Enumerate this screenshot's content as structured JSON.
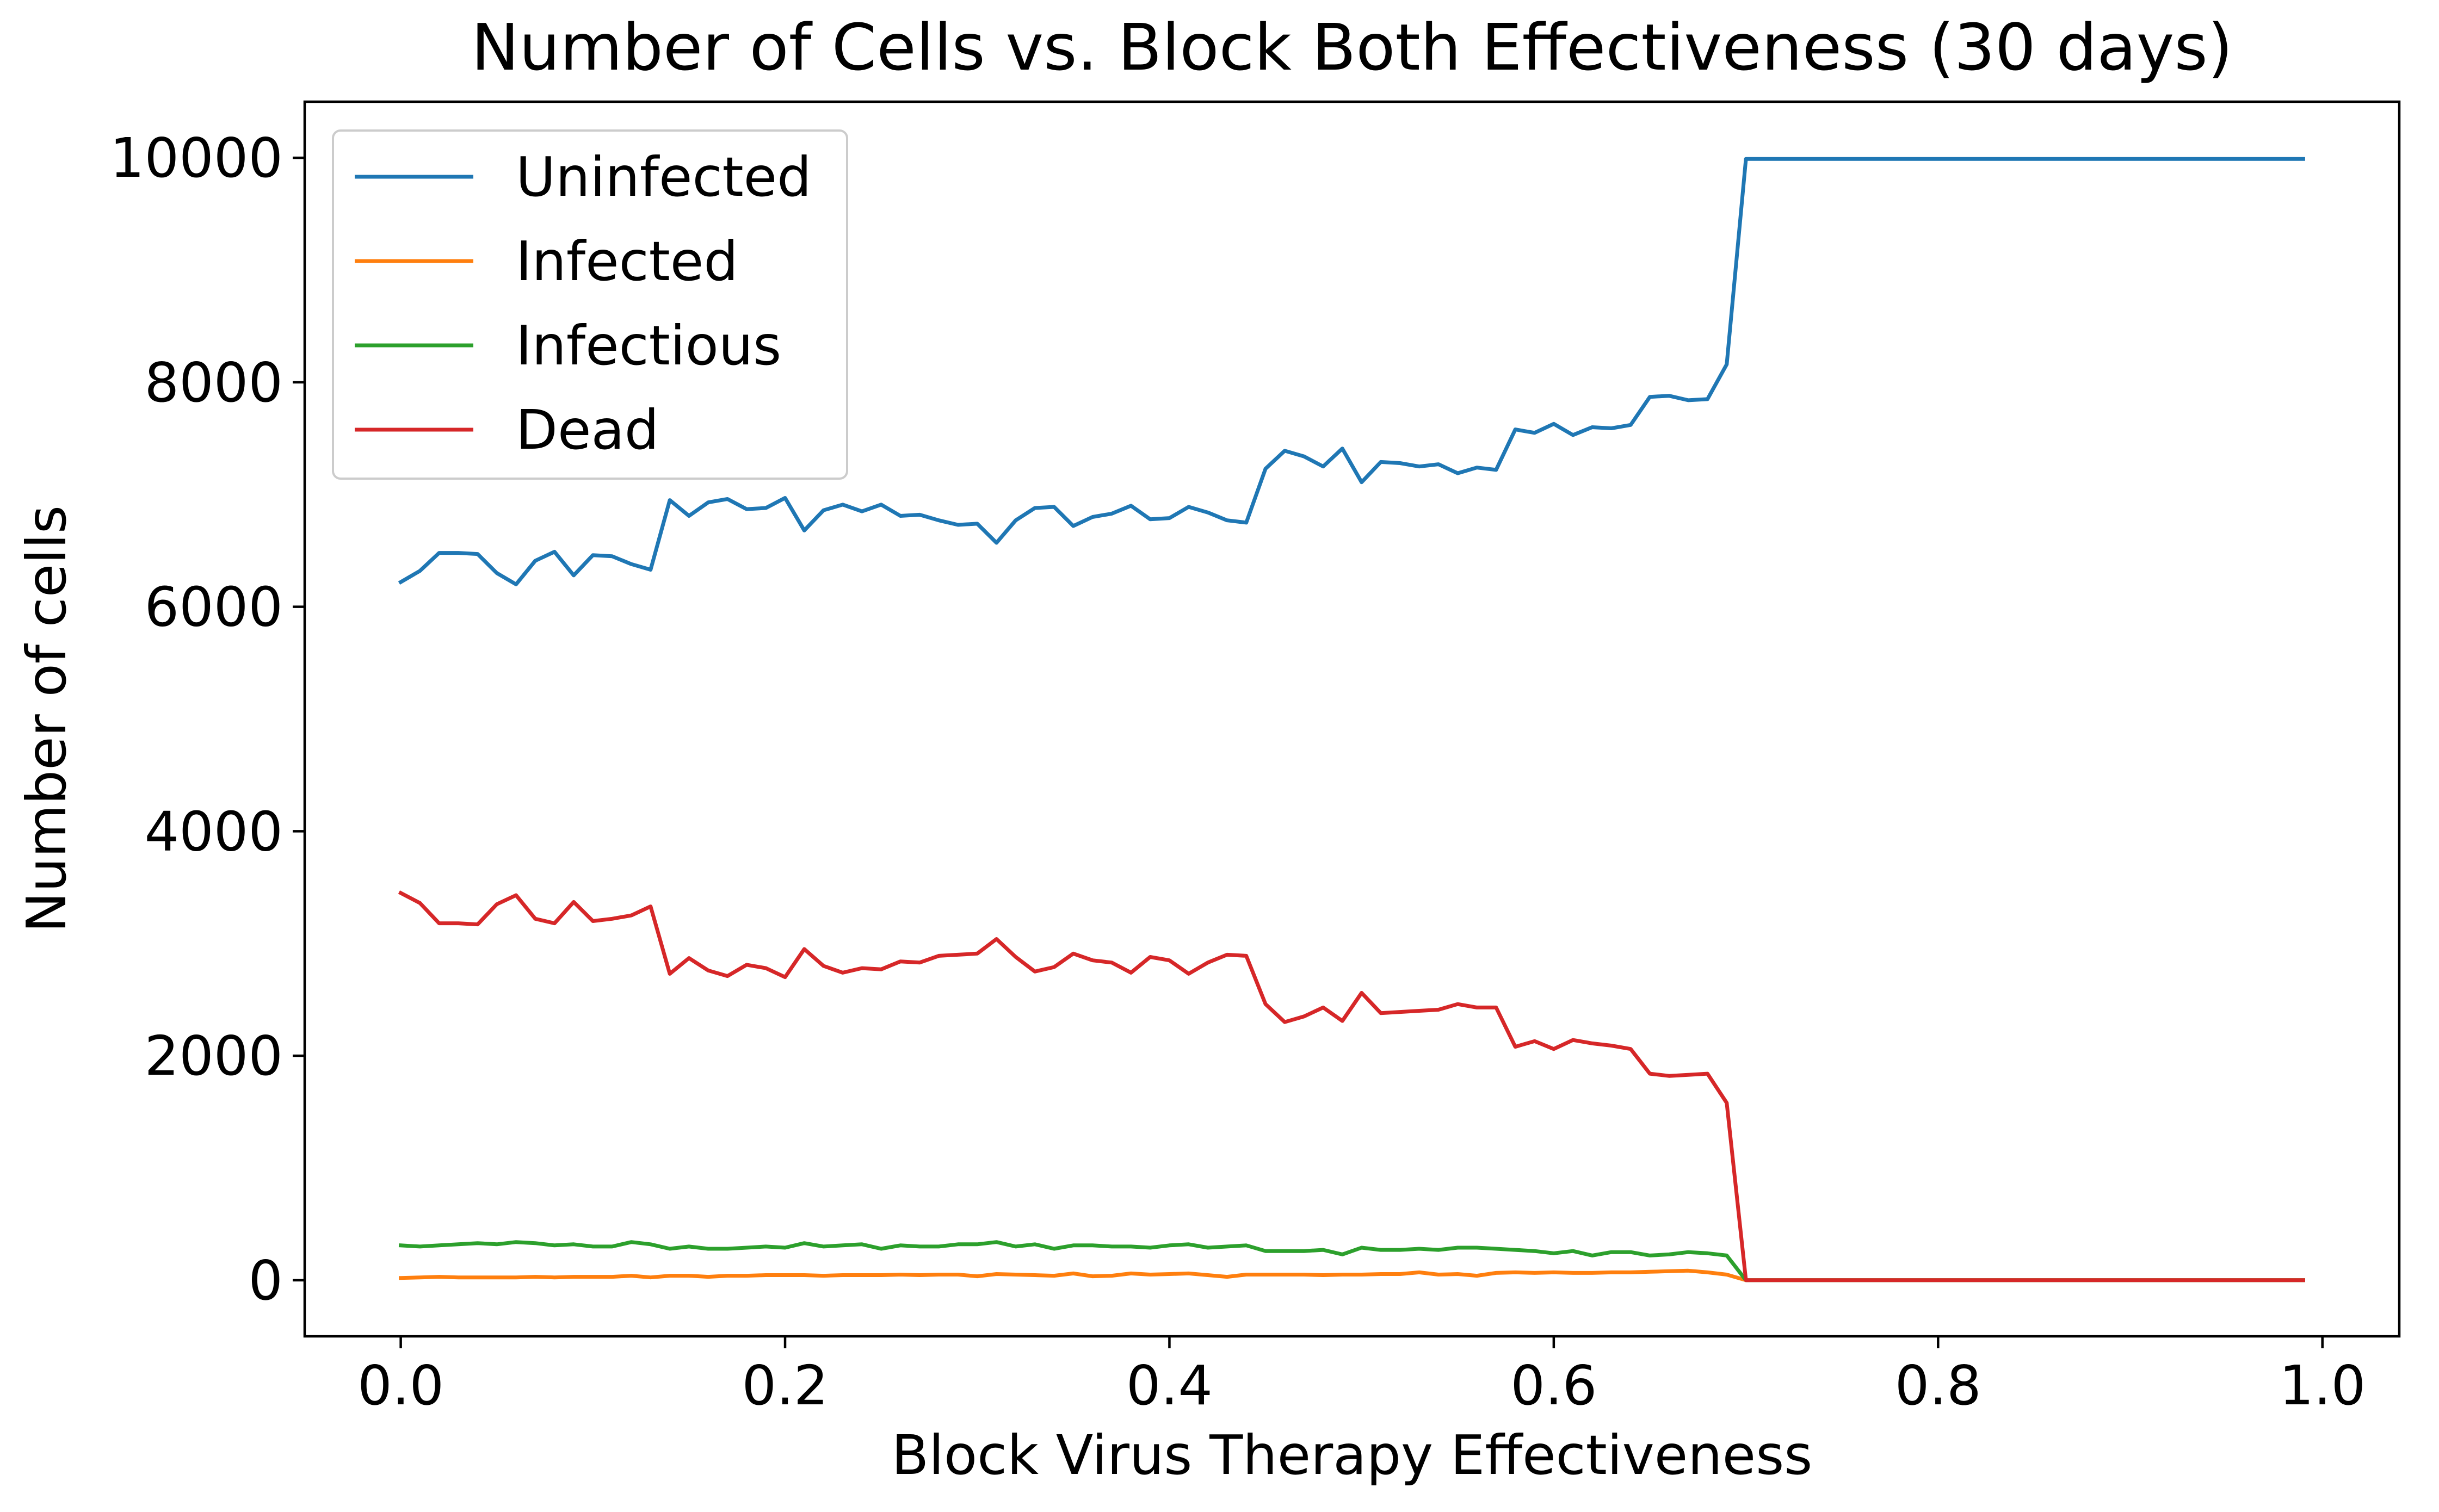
{
  "chart_data": {
    "type": "line",
    "title": "Number of Cells vs. Block Both Effectiveness (30 days)",
    "xlabel": "Block Virus Therapy Effectiveness",
    "ylabel": "Number of cells",
    "xlim": [
      -0.05,
      1.04
    ],
    "ylim": [
      -500,
      10500
    ],
    "xticks": [
      0.0,
      0.2,
      0.4,
      0.6,
      0.8,
      1.0
    ],
    "xtick_labels": [
      "0.0",
      "0.2",
      "0.4",
      "0.6",
      "0.8",
      "1.0"
    ],
    "yticks": [
      0,
      2000,
      4000,
      6000,
      8000,
      10000
    ],
    "ytick_labels": [
      "0",
      "2000",
      "4000",
      "6000",
      "8000",
      "10000"
    ],
    "legend_position": "upper-left",
    "grid": false,
    "x": [
      0.0,
      0.01,
      0.02,
      0.03,
      0.04,
      0.05,
      0.06,
      0.07,
      0.08,
      0.09,
      0.1,
      0.11,
      0.12,
      0.13,
      0.14,
      0.15,
      0.16,
      0.17,
      0.18,
      0.19,
      0.2,
      0.21,
      0.22,
      0.23,
      0.24,
      0.25,
      0.26,
      0.27,
      0.28,
      0.29,
      0.3,
      0.31,
      0.32,
      0.33,
      0.34,
      0.35,
      0.36,
      0.37,
      0.38,
      0.39,
      0.4,
      0.41,
      0.42,
      0.43,
      0.44,
      0.45,
      0.46,
      0.47,
      0.48,
      0.49,
      0.5,
      0.51,
      0.52,
      0.53,
      0.54,
      0.55,
      0.56,
      0.57,
      0.58,
      0.59,
      0.6,
      0.61,
      0.62,
      0.63,
      0.64,
      0.65,
      0.66,
      0.67,
      0.68,
      0.69,
      0.7,
      0.71,
      0.72,
      0.73,
      0.74,
      0.75,
      0.76,
      0.77,
      0.78,
      0.79,
      0.8,
      0.81,
      0.82,
      0.83,
      0.84,
      0.85,
      0.86,
      0.87,
      0.88,
      0.89,
      0.9,
      0.91,
      0.92,
      0.93,
      0.94,
      0.95,
      0.96,
      0.97,
      0.98,
      0.99
    ],
    "series": [
      {
        "name": "Uninfected",
        "color": "#1f77b4",
        "values": [
          6220,
          6320,
          6480,
          6480,
          6470,
          6300,
          6200,
          6410,
          6490,
          6280,
          6460,
          6450,
          6380,
          6330,
          6950,
          6810,
          6930,
          6960,
          6870,
          6880,
          6970,
          6680,
          6860,
          6910,
          6850,
          6910,
          6810,
          6820,
          6770,
          6730,
          6740,
          6570,
          6770,
          6880,
          6890,
          6720,
          6800,
          6830,
          6900,
          6780,
          6790,
          6890,
          6840,
          6770,
          6750,
          7230,
          7390,
          7340,
          7250,
          7410,
          7110,
          7290,
          7280,
          7250,
          7270,
          7190,
          7240,
          7220,
          7580,
          7550,
          7630,
          7530,
          7600,
          7590,
          7620,
          7870,
          7880,
          7840,
          7850,
          8160,
          9990,
          9990,
          9990,
          9990,
          9990,
          9990,
          9990,
          9990,
          9990,
          9990,
          9990,
          9990,
          9990,
          9990,
          9990,
          9990,
          9990,
          9990,
          9990,
          9990,
          9990,
          9990,
          9990,
          9990,
          9990,
          9990,
          9990,
          9990,
          9990,
          9990
        ]
      },
      {
        "name": "Infected",
        "color": "#ff7f0e",
        "values": [
          20,
          25,
          30,
          25,
          25,
          25,
          25,
          30,
          25,
          30,
          30,
          30,
          40,
          25,
          40,
          40,
          30,
          40,
          40,
          45,
          45,
          45,
          40,
          45,
          45,
          45,
          50,
          45,
          50,
          50,
          35,
          55,
          50,
          45,
          40,
          60,
          35,
          40,
          60,
          50,
          55,
          60,
          45,
          30,
          50,
          50,
          50,
          50,
          45,
          50,
          50,
          55,
          55,
          70,
          50,
          55,
          40,
          65,
          70,
          65,
          70,
          65,
          65,
          70,
          70,
          75,
          80,
          85,
          70,
          50,
          0,
          0,
          0,
          0,
          0,
          0,
          0,
          0,
          0,
          0,
          0,
          0,
          0,
          0,
          0,
          0,
          0,
          0,
          0,
          0,
          0,
          0,
          0,
          0,
          0,
          0,
          0,
          0,
          0,
          0
        ]
      },
      {
        "name": "Infectious",
        "color": "#2ca02c",
        "values": [
          310,
          300,
          310,
          320,
          330,
          320,
          340,
          330,
          310,
          320,
          300,
          300,
          340,
          320,
          280,
          300,
          280,
          280,
          290,
          300,
          290,
          330,
          300,
          310,
          320,
          280,
          310,
          300,
          300,
          320,
          320,
          340,
          300,
          320,
          280,
          310,
          310,
          300,
          300,
          290,
          310,
          320,
          290,
          300,
          310,
          260,
          260,
          260,
          270,
          230,
          290,
          270,
          270,
          280,
          270,
          290,
          290,
          280,
          270,
          260,
          240,
          260,
          220,
          250,
          250,
          220,
          230,
          250,
          240,
          220,
          0,
          0,
          0,
          0,
          0,
          0,
          0,
          0,
          0,
          0,
          0,
          0,
          0,
          0,
          0,
          0,
          0,
          0,
          0,
          0,
          0,
          0,
          0,
          0,
          0,
          0,
          0,
          0,
          0,
          0
        ]
      },
      {
        "name": "Dead",
        "color": "#d62728",
        "values": [
          3450,
          3360,
          3180,
          3180,
          3170,
          3350,
          3430,
          3220,
          3180,
          3370,
          3200,
          3220,
          3250,
          3330,
          2730,
          2870,
          2760,
          2710,
          2810,
          2780,
          2700,
          2950,
          2800,
          2740,
          2780,
          2770,
          2840,
          2830,
          2890,
          2900,
          2910,
          3040,
          2880,
          2750,
          2790,
          2910,
          2850,
          2830,
          2740,
          2880,
          2850,
          2730,
          2830,
          2900,
          2890,
          2460,
          2300,
          2350,
          2430,
          2310,
          2560,
          2380,
          2390,
          2400,
          2410,
          2460,
          2430,
          2430,
          2080,
          2130,
          2060,
          2140,
          2110,
          2090,
          2060,
          1840,
          1820,
          1830,
          1840,
          1580,
          0,
          0,
          0,
          0,
          0,
          0,
          0,
          0,
          0,
          0,
          0,
          0,
          0,
          0,
          0,
          0,
          0,
          0,
          0,
          0,
          0,
          0,
          0,
          0,
          0,
          0,
          0,
          0,
          0,
          0
        ]
      }
    ]
  }
}
